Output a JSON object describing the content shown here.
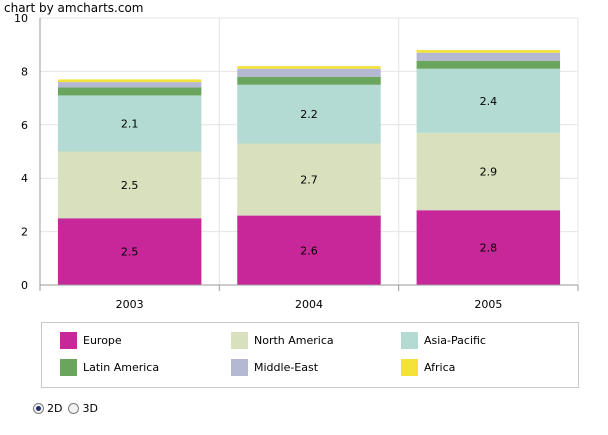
{
  "credit": "chart by amcharts.com",
  "chart_data": {
    "type": "bar",
    "stacked": true,
    "categories": [
      "2003",
      "2004",
      "2005"
    ],
    "series": [
      {
        "name": "Europe",
        "values": [
          2.5,
          2.6,
          2.8
        ],
        "color": "#c8279a",
        "labels": [
          "2.5",
          "2.6",
          "2.8"
        ]
      },
      {
        "name": "North America",
        "values": [
          2.5,
          2.7,
          2.9
        ],
        "color": "#d8e0bd",
        "labels": [
          "2.5",
          "2.7",
          "2.9"
        ]
      },
      {
        "name": "Asia-Pacific",
        "values": [
          2.1,
          2.2,
          2.4
        ],
        "color": "#b3dbd3",
        "labels": [
          "2.1",
          "2.2",
          "2.4"
        ]
      },
      {
        "name": "Latin America",
        "values": [
          0.3,
          0.3,
          0.3
        ],
        "color": "#69a55c",
        "labels": [
          "",
          "",
          ""
        ]
      },
      {
        "name": "Middle-East",
        "values": [
          0.2,
          0.3,
          0.3
        ],
        "color": "#b5b8d3",
        "labels": [
          "",
          "",
          ""
        ]
      },
      {
        "name": "Africa",
        "values": [
          0.1,
          0.1,
          0.1
        ],
        "color": "#f4e23b",
        "labels": [
          "",
          "",
          ""
        ]
      }
    ],
    "ylim": [
      0,
      10
    ],
    "yticks": [
      "0",
      "2",
      "4",
      "6",
      "8",
      "10"
    ],
    "grid": true,
    "legend_position": "bottom"
  },
  "controls": {
    "options": [
      {
        "label": "2D",
        "checked": true
      },
      {
        "label": "3D",
        "checked": false
      }
    ]
  }
}
